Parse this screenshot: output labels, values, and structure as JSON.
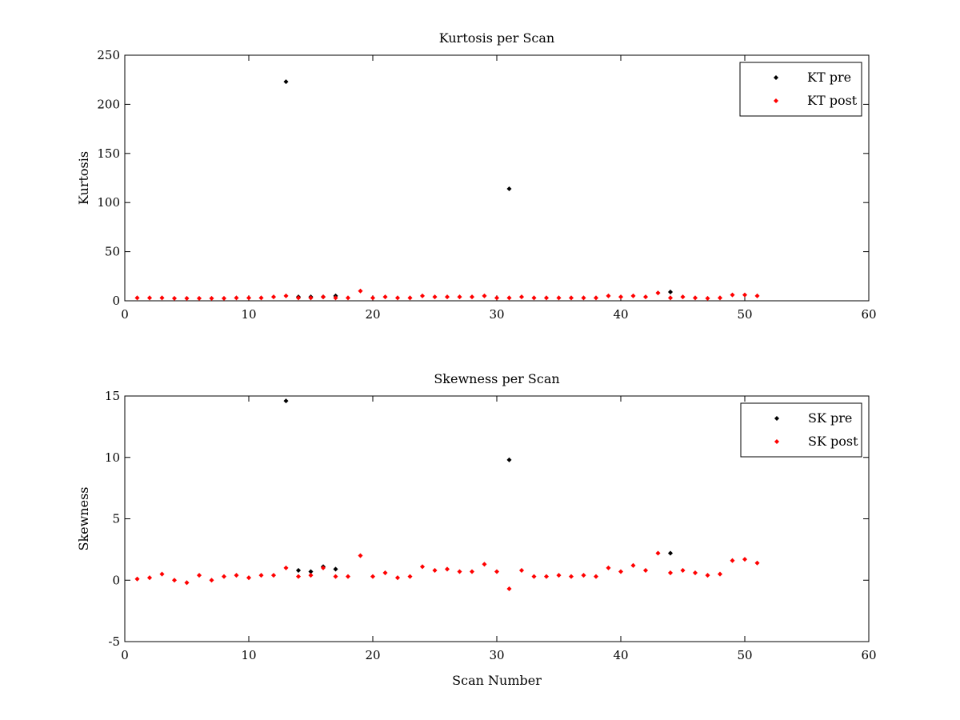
{
  "chart_data": [
    {
      "type": "scatter",
      "title": "Kurtosis per Scan",
      "xlabel": "",
      "ylabel": "Kurtosis",
      "xlim": [
        0,
        60
      ],
      "ylim": [
        0,
        250
      ],
      "xticks": [
        0,
        10,
        20,
        30,
        40,
        50,
        60
      ],
      "yticks": [
        0,
        50,
        100,
        150,
        200,
        250
      ],
      "grid": false,
      "legend_position": "top-right",
      "series": [
        {
          "name": "KT pre",
          "color": "#000000",
          "x": [
            13,
            14,
            15,
            16,
            17,
            31,
            44
          ],
          "y": [
            223,
            4,
            4,
            4,
            5,
            114,
            9
          ]
        },
        {
          "name": "KT post",
          "color": "#ff0000",
          "x": [
            1,
            2,
            3,
            4,
            5,
            6,
            7,
            8,
            9,
            10,
            11,
            12,
            13,
            14,
            15,
            16,
            17,
            18,
            19,
            20,
            21,
            22,
            23,
            24,
            25,
            26,
            27,
            28,
            29,
            30,
            31,
            32,
            33,
            34,
            35,
            36,
            37,
            38,
            39,
            40,
            41,
            42,
            43,
            44,
            45,
            46,
            47,
            48,
            49,
            50,
            51
          ],
          "y": [
            3,
            3,
            3,
            2.5,
            2.5,
            2.5,
            2.5,
            2.5,
            3,
            3,
            3,
            4,
            5,
            3,
            3,
            4,
            3,
            3,
            10,
            3,
            4,
            3,
            3,
            5,
            4,
            4,
            4,
            4,
            5,
            3,
            3,
            4,
            3,
            3,
            3,
            3,
            3,
            3,
            5,
            4,
            5,
            4,
            8,
            3,
            4,
            3,
            2.5,
            3,
            6,
            6,
            5
          ]
        }
      ]
    },
    {
      "type": "scatter",
      "title": "Skewness per Scan",
      "xlabel": "Scan Number",
      "ylabel": "Skewness",
      "xlim": [
        0,
        60
      ],
      "ylim": [
        -5,
        15
      ],
      "xticks": [
        0,
        10,
        20,
        30,
        40,
        50,
        60
      ],
      "yticks": [
        -5,
        0,
        5,
        10,
        15
      ],
      "grid": false,
      "legend_position": "top-right",
      "series": [
        {
          "name": "SK pre",
          "color": "#000000",
          "x": [
            13,
            14,
            15,
            16,
            17,
            31,
            44
          ],
          "y": [
            14.6,
            0.8,
            0.7,
            1.1,
            0.9,
            9.8,
            2.2
          ]
        },
        {
          "name": "SK post",
          "color": "#ff0000",
          "x": [
            1,
            2,
            3,
            4,
            5,
            6,
            7,
            8,
            9,
            10,
            11,
            12,
            13,
            14,
            15,
            16,
            17,
            18,
            19,
            20,
            21,
            22,
            23,
            24,
            25,
            26,
            27,
            28,
            29,
            30,
            31,
            32,
            33,
            34,
            35,
            36,
            37,
            38,
            39,
            40,
            41,
            42,
            43,
            44,
            45,
            46,
            47,
            48,
            49,
            50,
            51
          ],
          "y": [
            0.1,
            0.2,
            0.5,
            0.0,
            -0.2,
            0.4,
            0.0,
            0.3,
            0.4,
            0.2,
            0.4,
            0.4,
            1.0,
            0.3,
            0.4,
            1.0,
            0.3,
            0.3,
            2.0,
            0.3,
            0.6,
            0.2,
            0.3,
            1.1,
            0.8,
            0.9,
            0.7,
            0.7,
            1.3,
            0.7,
            -0.7,
            0.8,
            0.3,
            0.3,
            0.4,
            0.3,
            0.4,
            0.3,
            1.0,
            0.7,
            1.2,
            0.8,
            2.2,
            0.6,
            0.8,
            0.6,
            0.4,
            0.5,
            1.6,
            1.7,
            1.4
          ]
        }
      ]
    }
  ]
}
